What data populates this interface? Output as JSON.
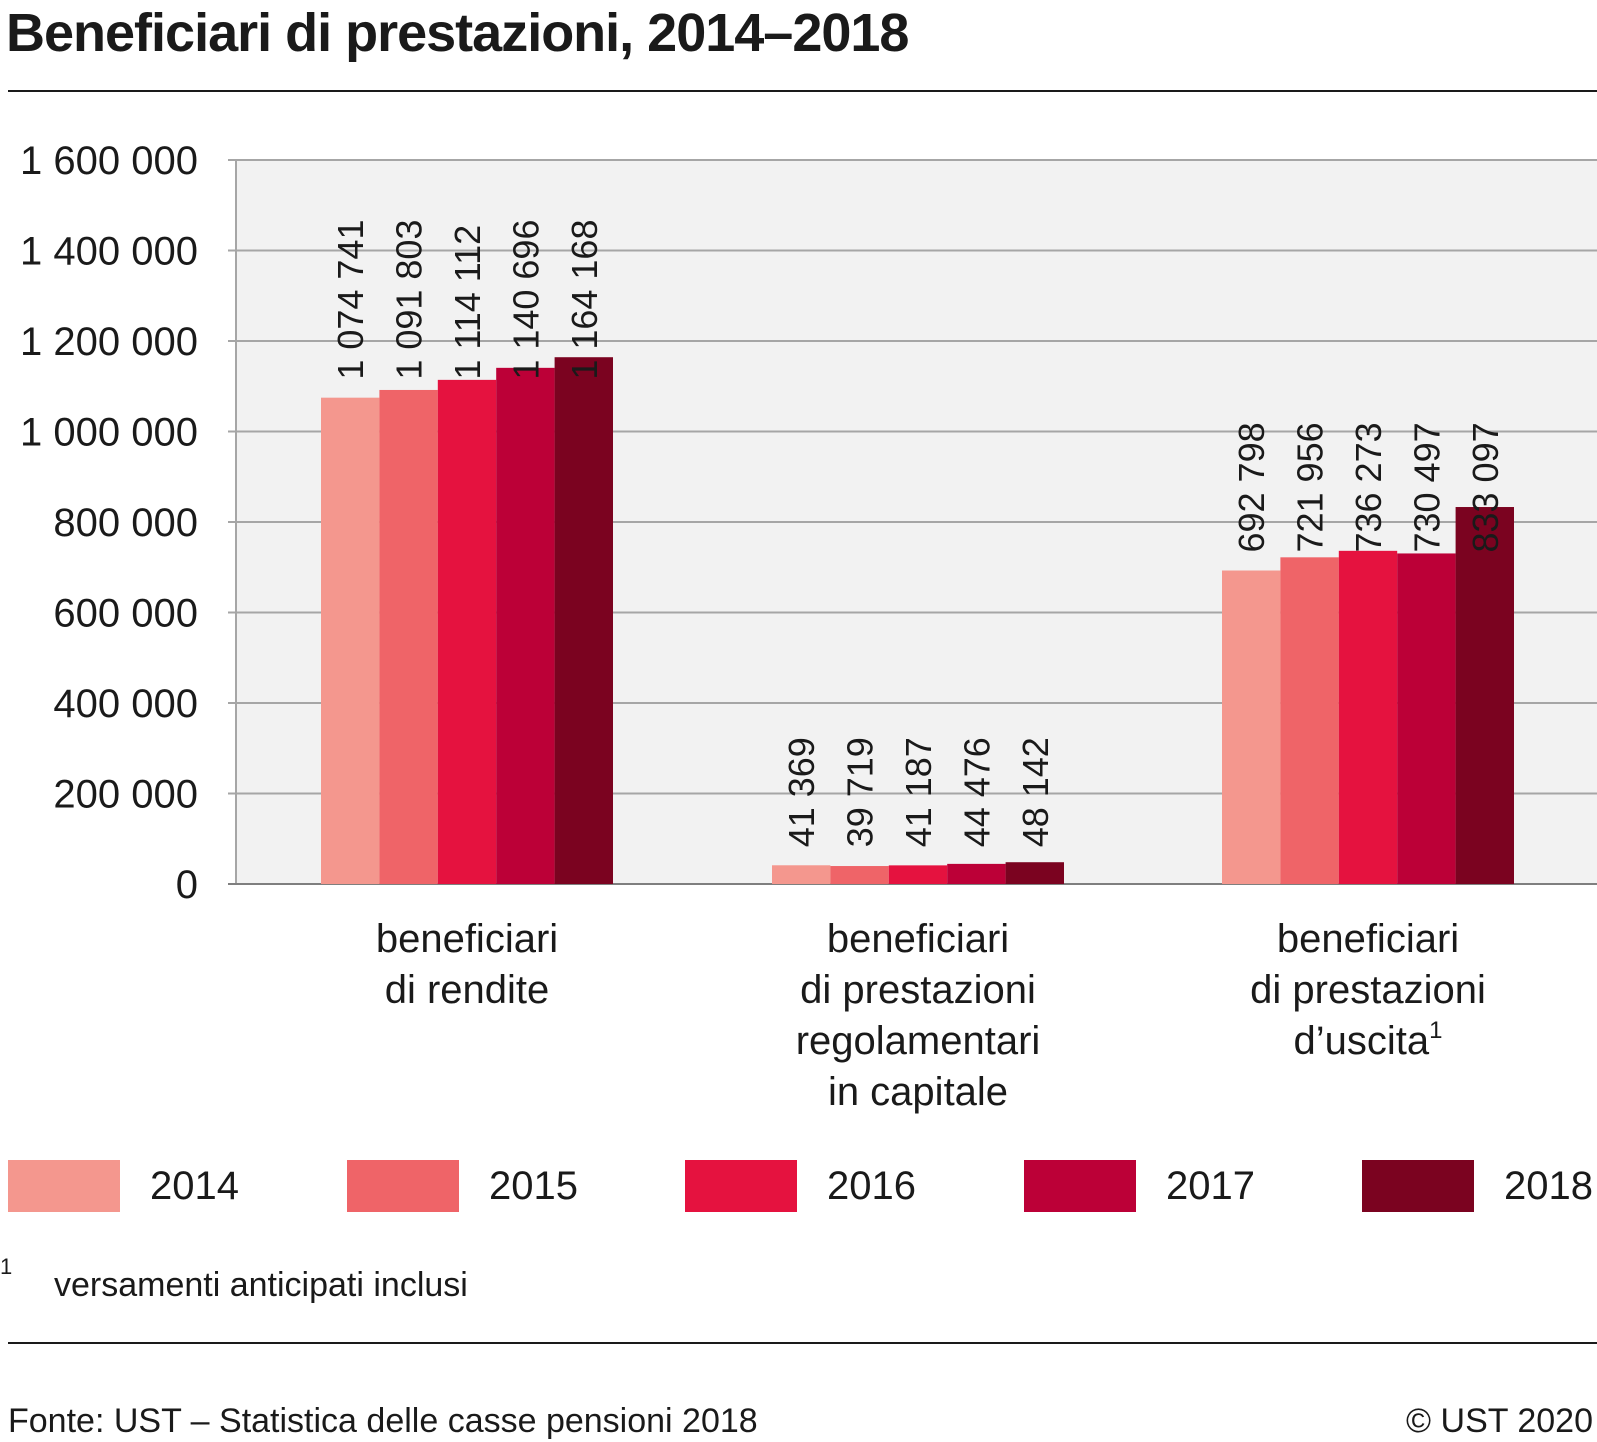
{
  "title": "Beneficiari di prestazioni, 2014–2018",
  "footnote": {
    "marker": "1",
    "text": "versamenti anticipati inclusi"
  },
  "source": "Fonte: UST – Statistica delle casse pensioni 2018",
  "copyright": "© UST 2020",
  "chart_data": {
    "type": "bar",
    "categories": [
      [
        "beneficiari",
        "di rendite"
      ],
      [
        "beneficiari",
        "di prestazioni",
        "regolamentari",
        "in capitale"
      ],
      [
        "beneficiari",
        "di prestazioni",
        "d’uscita"
      ]
    ],
    "category_footnotes": [
      "",
      "",
      "1"
    ],
    "series": [
      {
        "name": "2014",
        "color": "#f4978e",
        "values": [
          1074741,
          41369,
          692798
        ],
        "labels": [
          "1 074 741",
          "41 369",
          "692 798"
        ]
      },
      {
        "name": "2015",
        "color": "#ef6468",
        "values": [
          1091803,
          39719,
          721956
        ],
        "labels": [
          "1 091 803",
          "39 719",
          "721 956"
        ]
      },
      {
        "name": "2016",
        "color": "#e5123f",
        "values": [
          1114112,
          41187,
          736273
        ],
        "labels": [
          "1 114 112",
          "41 187",
          "736 273"
        ]
      },
      {
        "name": "2017",
        "color": "#bc0037",
        "values": [
          1140696,
          44476,
          730497
        ],
        "labels": [
          "1 140 696",
          "44 476",
          "730 497"
        ]
      },
      {
        "name": "2018",
        "color": "#7b0320",
        "values": [
          1164168,
          48142,
          833097
        ],
        "labels": [
          "1 164 168",
          "48 142",
          "833 097"
        ]
      }
    ],
    "ylim": [
      0,
      1600000
    ],
    "yticks": [
      0,
      200000,
      400000,
      600000,
      800000,
      1000000,
      1200000,
      1400000,
      1600000
    ],
    "ytick_labels": [
      "0",
      "200 000",
      "400 000",
      "600 000",
      "800 000",
      "1 000 000",
      "1 200 000",
      "1 400 000",
      "1 600 000"
    ],
    "grid": true,
    "legend": "bottom"
  }
}
